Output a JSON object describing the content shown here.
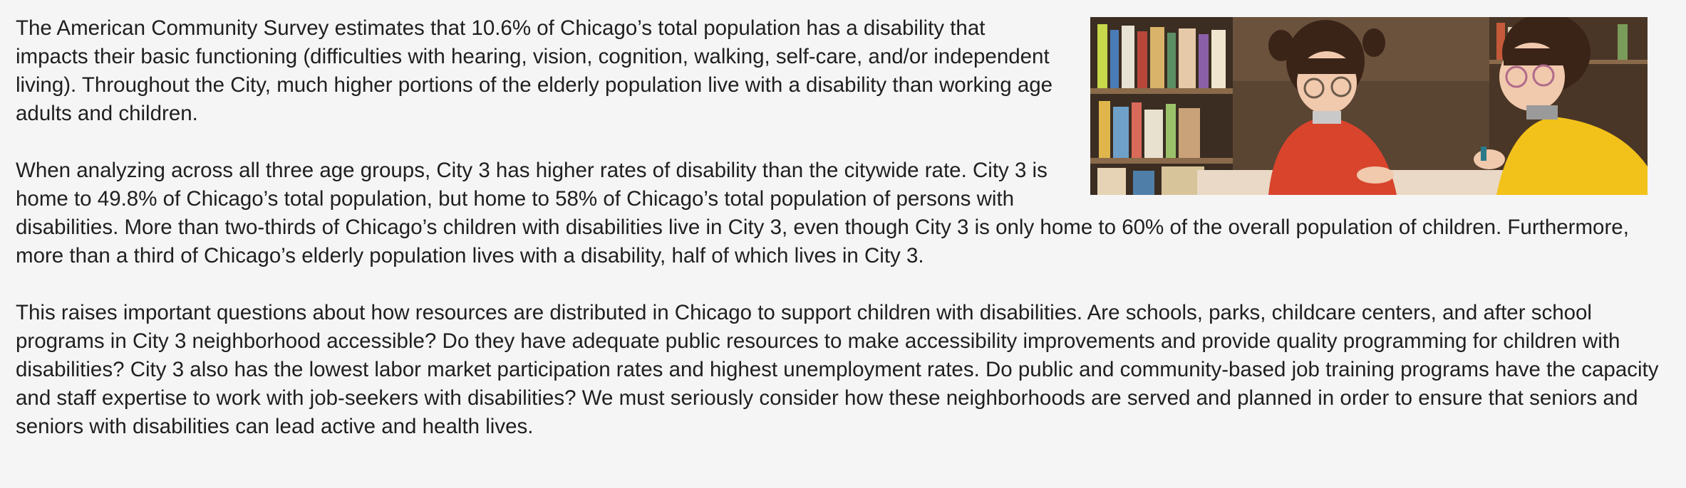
{
  "article": {
    "paragraphs": [
      "The American Community Survey estimates that 10.6% of Chicago’s total population has a disability that impacts their basic functioning (difficulties with hearing, vision, cognition, walking, self-care, and/or independent living). Throughout the City, much higher portions of the elderly population live with a disability than working age adults and children.",
      "When analyzing across all three age groups, City 3 has higher rates of disability than the citywide rate. City 3 is home to 49.8% of Chicago’s total population, but home to 58% of Chicago’s total population of persons with disabilities. More than two-thirds of Chicago’s children with disabilities live in City 3, even though City 3 is only home to 60% of the overall population of children. Furthermore, more than a third of Chicago’s elderly population lives with a disability, half of which lives in City 3.",
      "This raises important questions about how resources are distributed in Chicago to support children with disabilities. Are schools, parks, childcare centers, and after school programs in City 3 neighborhood accessible? Do they have adequate public resources to make accessibility improvements and provide quality programming for children with disabilities? City 3 also has the lowest labor market participation rates and highest unemployment rates. Do public and community-based job training programs have the capacity and staff expertise to work with job-seekers with disabilities? We must seriously consider how these neighborhoods are served and planned in order to ensure that seniors and seniors with disabilities can lead active and health lives."
    ]
  },
  "photo": {
    "colors": {
      "shelf_dark": "#2b2119",
      "shelf_wood": "#8a6a4a",
      "red_sweater": "#d8442c",
      "yellow_sweater": "#f2c21b",
      "skin": "#f1c9ad",
      "hair": "#3a2418",
      "table": "#e9d9c6"
    }
  }
}
